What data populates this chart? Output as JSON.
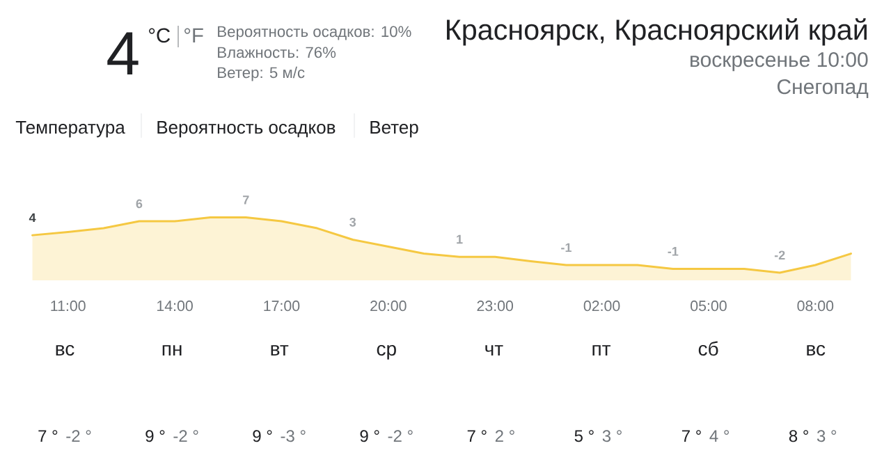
{
  "chart_data": [
    {
      "type": "other",
      "title": "Красноярск, Красноярский край",
      "subtitle": "воскресенье 10:00",
      "annotations": [
        "Снегопад",
        "4",
        "°C",
        "°F",
        "Вероятность осадков: 10%",
        "Влажность: 76%",
        "Ветер: 5 м/с"
      ]
    },
    {
      "type": "area",
      "title": "Температура",
      "annotations": [
        "Вероятность осадков",
        "Ветер"
      ],
      "categories": [
        null,
        "11:00",
        null,
        null,
        "14:00",
        null,
        null,
        "17:00",
        null,
        null,
        "20:00",
        null,
        null,
        "23:00",
        null,
        null,
        "02:00",
        null,
        null,
        "05:00",
        null,
        null,
        "08:00",
        null
      ],
      "values": [
        4.0,
        4.5,
        5.1,
        6.2,
        6.2,
        6.8,
        6.8,
        6.2,
        5.1,
        3.3,
        2.2,
        1.1,
        0.6,
        0.6,
        -0.1,
        -0.7,
        -0.7,
        -0.7,
        -1.3,
        -1.3,
        -1.3,
        -1.9,
        -0.7,
        1.1
      ],
      "value_labels": [
        "4",
        null,
        null,
        "6",
        null,
        null,
        "7",
        null,
        null,
        "3",
        null,
        null,
        "1",
        null,
        null,
        "-1",
        null,
        null,
        "-1",
        null,
        null,
        "-2",
        null,
        null
      ],
      "color": "#f5c842",
      "marker": "none",
      "tick_labels": "x"
    },
    {
      "type": "other",
      "annotations": [
        "вс",
        "7 °",
        "-2 °",
        "пн",
        "9 °",
        "-2 °",
        "вт",
        "9 °",
        "-3 °",
        "ср",
        "9 °",
        "-2 °",
        "чт",
        "7 °",
        "2 °",
        "пт",
        "5 °",
        "3 °",
        "сб",
        "7 °",
        "4 °",
        "вс",
        "8 °",
        "3 °"
      ]
    }
  ]
}
